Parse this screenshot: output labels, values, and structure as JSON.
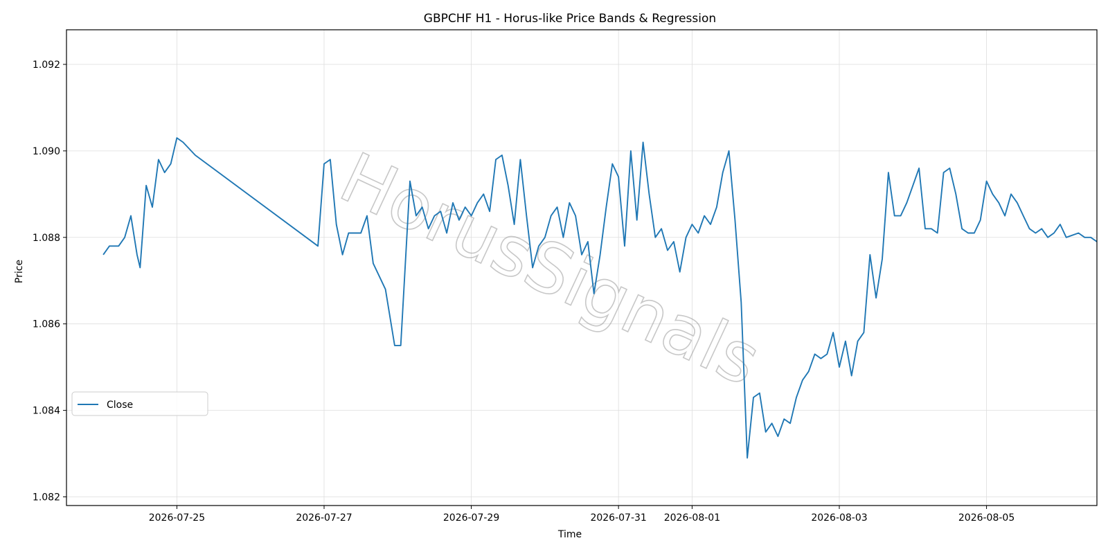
{
  "chart_data": {
    "type": "line",
    "title": "GBPCHF H1 - Horus-like Price Bands & Regression",
    "xlabel": "Time",
    "ylabel": "Price",
    "watermark": "HorusSignals",
    "ylim": [
      1.0818,
      1.0928
    ],
    "xlim": [
      "2026-07-23T12:00",
      "2026-08-06T12:00"
    ],
    "grid": true,
    "legend_position": "lower-left",
    "x_ticks": [
      "2026-07-25",
      "2026-07-27",
      "2026-07-29",
      "2026-07-31",
      "2026-08-01",
      "2026-08-03",
      "2026-08-05"
    ],
    "y_ticks": [
      "1.082",
      "1.084",
      "1.086",
      "1.088",
      "1.090",
      "1.092"
    ],
    "series": [
      {
        "name": "Close",
        "color": "#1f77b4",
        "points": [
          [
            "2026-07-24T00:00",
            1.0876
          ],
          [
            "2026-07-24T02:00",
            1.0878
          ],
          [
            "2026-07-24T05:00",
            1.0878
          ],
          [
            "2026-07-24T07:00",
            1.088
          ],
          [
            "2026-07-24T09:00",
            1.0885
          ],
          [
            "2026-07-24T11:00",
            1.0876
          ],
          [
            "2026-07-24T12:00",
            1.0873
          ],
          [
            "2026-07-24T14:00",
            1.0892
          ],
          [
            "2026-07-24T16:00",
            1.0887
          ],
          [
            "2026-07-24T18:00",
            1.0898
          ],
          [
            "2026-07-24T20:00",
            1.0895
          ],
          [
            "2026-07-24T22:00",
            1.0897
          ],
          [
            "2026-07-25T00:00",
            1.0903
          ],
          [
            "2026-07-25T02:00",
            1.0902
          ],
          [
            "2026-07-25T06:00",
            1.0899
          ],
          [
            "2026-07-26T22:00",
            1.0878
          ],
          [
            "2026-07-27T00:00",
            1.0897
          ],
          [
            "2026-07-27T02:00",
            1.0898
          ],
          [
            "2026-07-27T04:00",
            1.0883
          ],
          [
            "2026-07-27T06:00",
            1.0876
          ],
          [
            "2026-07-27T08:00",
            1.0881
          ],
          [
            "2026-07-27T12:00",
            1.0881
          ],
          [
            "2026-07-27T14:00",
            1.0885
          ],
          [
            "2026-07-27T16:00",
            1.0874
          ],
          [
            "2026-07-27T20:00",
            1.0868
          ],
          [
            "2026-07-27T23:00",
            1.0855
          ],
          [
            "2026-07-28T01:00",
            1.0855
          ],
          [
            "2026-07-28T04:00",
            1.0893
          ],
          [
            "2026-07-28T06:00",
            1.0885
          ],
          [
            "2026-07-28T08:00",
            1.0887
          ],
          [
            "2026-07-28T10:00",
            1.0882
          ],
          [
            "2026-07-28T12:00",
            1.0885
          ],
          [
            "2026-07-28T14:00",
            1.0886
          ],
          [
            "2026-07-28T16:00",
            1.0881
          ],
          [
            "2026-07-28T18:00",
            1.0888
          ],
          [
            "2026-07-28T20:00",
            1.0884
          ],
          [
            "2026-07-28T22:00",
            1.0887
          ],
          [
            "2026-07-29T00:00",
            1.0885
          ],
          [
            "2026-07-29T02:00",
            1.0888
          ],
          [
            "2026-07-29T04:00",
            1.089
          ],
          [
            "2026-07-29T06:00",
            1.0886
          ],
          [
            "2026-07-29T08:00",
            1.0898
          ],
          [
            "2026-07-29T10:00",
            1.0899
          ],
          [
            "2026-07-29T12:00",
            1.0892
          ],
          [
            "2026-07-29T14:00",
            1.0883
          ],
          [
            "2026-07-29T16:00",
            1.0898
          ],
          [
            "2026-07-29T18:00",
            1.0885
          ],
          [
            "2026-07-29T20:00",
            1.0873
          ],
          [
            "2026-07-29T22:00",
            1.0878
          ],
          [
            "2026-07-30T00:00",
            1.088
          ],
          [
            "2026-07-30T02:00",
            1.0885
          ],
          [
            "2026-07-30T04:00",
            1.0887
          ],
          [
            "2026-07-30T06:00",
            1.088
          ],
          [
            "2026-07-30T08:00",
            1.0888
          ],
          [
            "2026-07-30T10:00",
            1.0885
          ],
          [
            "2026-07-30T12:00",
            1.0876
          ],
          [
            "2026-07-30T14:00",
            1.0879
          ],
          [
            "2026-07-30T16:00",
            1.0867
          ],
          [
            "2026-07-30T18:00",
            1.0876
          ],
          [
            "2026-07-30T20:00",
            1.0887
          ],
          [
            "2026-07-30T22:00",
            1.0897
          ],
          [
            "2026-07-31T00:00",
            1.0894
          ],
          [
            "2026-07-31T02:00",
            1.0878
          ],
          [
            "2026-07-31T04:00",
            1.09
          ],
          [
            "2026-07-31T06:00",
            1.0884
          ],
          [
            "2026-07-31T08:00",
            1.0902
          ],
          [
            "2026-07-31T10:00",
            1.089
          ],
          [
            "2026-07-31T12:00",
            1.088
          ],
          [
            "2026-07-31T14:00",
            1.0882
          ],
          [
            "2026-07-31T16:00",
            1.0877
          ],
          [
            "2026-07-31T18:00",
            1.0879
          ],
          [
            "2026-07-31T20:00",
            1.0872
          ],
          [
            "2026-07-31T22:00",
            1.088
          ],
          [
            "2026-08-01T00:00",
            1.0883
          ],
          [
            "2026-08-01T02:00",
            1.0881
          ],
          [
            "2026-08-01T04:00",
            1.0885
          ],
          [
            "2026-08-01T06:00",
            1.0883
          ],
          [
            "2026-08-01T08:00",
            1.0887
          ],
          [
            "2026-08-01T10:00",
            1.0895
          ],
          [
            "2026-08-01T12:00",
            1.09
          ],
          [
            "2026-08-01T14:00",
            1.0884
          ],
          [
            "2026-08-01T16:00",
            1.0865
          ],
          [
            "2026-08-01T18:00",
            1.0829
          ],
          [
            "2026-08-01T20:00",
            1.0843
          ],
          [
            "2026-08-01T22:00",
            1.0844
          ],
          [
            "2026-08-02T00:00",
            1.0835
          ],
          [
            "2026-08-02T02:00",
            1.0837
          ],
          [
            "2026-08-02T04:00",
            1.0834
          ],
          [
            "2026-08-02T06:00",
            1.0838
          ],
          [
            "2026-08-02T08:00",
            1.0837
          ],
          [
            "2026-08-02T10:00",
            1.0843
          ],
          [
            "2026-08-02T12:00",
            1.0847
          ],
          [
            "2026-08-02T14:00",
            1.0849
          ],
          [
            "2026-08-02T16:00",
            1.0853
          ],
          [
            "2026-08-02T18:00",
            1.0852
          ],
          [
            "2026-08-02T20:00",
            1.0853
          ],
          [
            "2026-08-02T22:00",
            1.0858
          ],
          [
            "2026-08-03T00:00",
            1.085
          ],
          [
            "2026-08-03T02:00",
            1.0856
          ],
          [
            "2026-08-03T04:00",
            1.0848
          ],
          [
            "2026-08-03T06:00",
            1.0856
          ],
          [
            "2026-08-03T08:00",
            1.0858
          ],
          [
            "2026-08-03T10:00",
            1.0876
          ],
          [
            "2026-08-03T12:00",
            1.0866
          ],
          [
            "2026-08-03T14:00",
            1.0875
          ],
          [
            "2026-08-03T16:00",
            1.0895
          ],
          [
            "2026-08-03T18:00",
            1.0885
          ],
          [
            "2026-08-03T20:00",
            1.0885
          ],
          [
            "2026-08-03T22:00",
            1.0888
          ],
          [
            "2026-08-04T00:00",
            1.0892
          ],
          [
            "2026-08-04T02:00",
            1.0896
          ],
          [
            "2026-08-04T04:00",
            1.0882
          ],
          [
            "2026-08-04T06:00",
            1.0882
          ],
          [
            "2026-08-04T08:00",
            1.0881
          ],
          [
            "2026-08-04T10:00",
            1.0895
          ],
          [
            "2026-08-04T12:00",
            1.0896
          ],
          [
            "2026-08-04T14:00",
            1.089
          ],
          [
            "2026-08-04T16:00",
            1.0882
          ],
          [
            "2026-08-04T18:00",
            1.0881
          ],
          [
            "2026-08-04T20:00",
            1.0881
          ],
          [
            "2026-08-04T22:00",
            1.0884
          ],
          [
            "2026-08-05T00:00",
            1.0893
          ],
          [
            "2026-08-05T02:00",
            1.089
          ],
          [
            "2026-08-05T04:00",
            1.0888
          ],
          [
            "2026-08-05T06:00",
            1.0885
          ],
          [
            "2026-08-05T08:00",
            1.089
          ],
          [
            "2026-08-05T10:00",
            1.0888
          ],
          [
            "2026-08-05T12:00",
            1.0885
          ],
          [
            "2026-08-05T14:00",
            1.0882
          ],
          [
            "2026-08-05T16:00",
            1.0881
          ],
          [
            "2026-08-05T18:00",
            1.0882
          ],
          [
            "2026-08-05T20:00",
            1.088
          ],
          [
            "2026-08-05T22:00",
            1.0881
          ],
          [
            "2026-08-06T00:00",
            1.0883
          ],
          [
            "2026-08-06T02:00",
            1.088
          ],
          [
            "2026-08-06T06:00",
            1.0881
          ],
          [
            "2026-08-06T08:00",
            1.088
          ],
          [
            "2026-08-06T10:00",
            1.088
          ],
          [
            "2026-08-06T12:00",
            1.0879
          ]
        ]
      }
    ]
  }
}
